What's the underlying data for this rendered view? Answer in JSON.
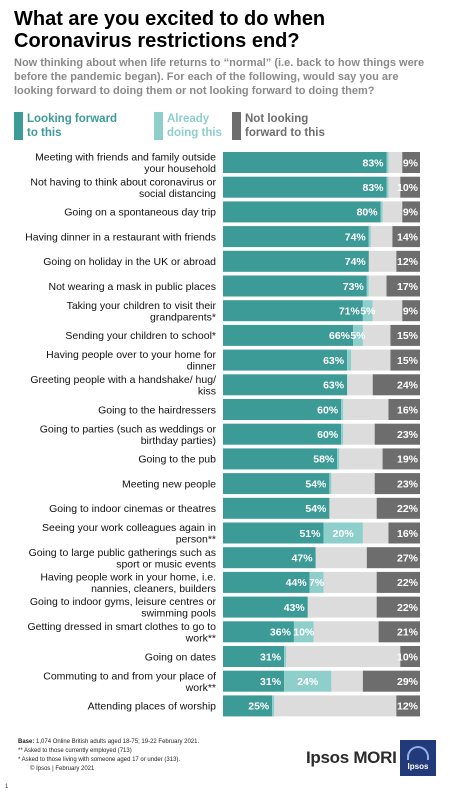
{
  "chart_data": {
    "type": "bar",
    "stacked": true,
    "orientation": "horizontal",
    "title": "What are you excited to do when Coronavirus restrictions end?",
    "subtitle": "Now thinking about when life returns to “normal” (i.e. back to how things were before the pandemic began). For each of the following, would say you are looking forward to doing them or not looking forward to doing them?",
    "legend_position": "top",
    "xlim": [
      0,
      100
    ],
    "categories": [
      "Meeting with friends and family outside your household",
      "Not having to think about coronavirus or social distancing",
      "Going on a spontaneous day trip",
      "Having dinner in a restaurant with friends",
      "Going on holiday in the UK or abroad",
      "Not wearing a mask in public places",
      "Taking your children to visit their grandparents*",
      "Sending your children to school*",
      "Having people over to your home for dinner",
      "Greeting people with a handshake/ hug/ kiss",
      "Going to the hairdressers",
      "Going to parties (such as weddings or birthday parties)",
      "Going to the pub",
      "Meeting new people",
      "Going to indoor cinemas or theatres",
      "Seeing your work colleagues again in person**",
      "Going to large public gatherings such as sport or music events",
      "Having people work in your home, i.e. nannies, cleaners, builders",
      "Going to indoor gyms, leisure centres or swimming pools",
      "Getting dressed in smart clothes to go to work**",
      "Going on dates",
      "Commuting to and from your place of work**",
      "Attending places of worship"
    ],
    "series": [
      {
        "name": "Looking forward to this",
        "color": "#3d9b97",
        "values": [
          83,
          83,
          80,
          74,
          74,
          73,
          71,
          66,
          63,
          63,
          60,
          60,
          58,
          54,
          54,
          51,
          47,
          44,
          43,
          36,
          31,
          31,
          25
        ]
      },
      {
        "name": "Already doing this",
        "color": "#8ecfcc",
        "values": [
          1,
          1,
          1,
          1,
          0,
          1,
          5,
          5,
          2,
          0,
          1,
          1,
          1,
          1,
          0,
          20,
          0,
          7,
          0,
          10,
          1,
          24,
          1
        ]
      },
      {
        "name": "Not looking forward to this",
        "color": "#6d6d6d",
        "values": [
          9,
          10,
          9,
          14,
          12,
          17,
          9,
          15,
          15,
          24,
          16,
          23,
          19,
          23,
          22,
          16,
          27,
          22,
          22,
          21,
          10,
          29,
          12
        ]
      }
    ],
    "remainder_color": "#dcdcdc",
    "data_labels": [
      [
        "83%",
        "",
        "9%"
      ],
      [
        "83%",
        "",
        "10%"
      ],
      [
        "80%",
        "",
        "9%"
      ],
      [
        "74%",
        "",
        "14%"
      ],
      [
        "74%",
        "",
        "12%"
      ],
      [
        "73%",
        "",
        "17%"
      ],
      [
        "71%",
        "5%",
        "9%"
      ],
      [
        "66%",
        "5%",
        "15%"
      ],
      [
        "63%",
        "",
        "15%"
      ],
      [
        "63%",
        "",
        "24%"
      ],
      [
        "60%",
        "",
        "16%"
      ],
      [
        "60%",
        "",
        "23%"
      ],
      [
        "58%",
        "",
        "19%"
      ],
      [
        "54%",
        "",
        "23%"
      ],
      [
        "54%",
        "",
        "22%"
      ],
      [
        "51%",
        "20%",
        "16%"
      ],
      [
        "47%",
        "",
        "27%"
      ],
      [
        "44%",
        "7%",
        "22%"
      ],
      [
        "43%",
        "",
        "22%"
      ],
      [
        "36%",
        "10%",
        "21%"
      ],
      [
        "31%",
        "",
        "10%"
      ],
      [
        "31%",
        "24%",
        "29%"
      ],
      [
        "25%",
        "",
        "12%"
      ]
    ]
  },
  "footer": {
    "base_label": "Base:",
    "base_text": "1,074 Online British adults aged 18-75; 19-22 February 2021.",
    "note1": "** Asked to those currently employed (713)",
    "note2": "* Asked to those living with someone aged 17 or under (313).",
    "copyright": "© Ipsos | February 2021",
    "page_number": "1"
  },
  "brand": {
    "name": "Ipsos MORI",
    "logo_text": "Ipsos"
  }
}
